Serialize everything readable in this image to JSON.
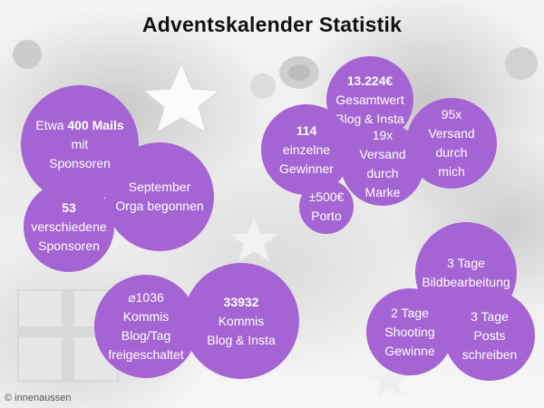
{
  "title": "Adventskalender Statistik",
  "copyright": "© innenaussen",
  "colors": {
    "bubble": "#a564d3",
    "title": "#111111"
  },
  "bubbles": {
    "mails": {
      "l1_pre": "Etwa ",
      "l1_bold": "400 Mails",
      "l2": "mit",
      "l3": "Sponsoren"
    },
    "september": {
      "l1": "September",
      "l2": "Orga begonnen"
    },
    "sponsors": {
      "l1": "53",
      "l2": "verschiedene",
      "l3": "Sponsoren"
    },
    "gesamtwert": {
      "l1": "13.224€",
      "l2": "Gesamtwert",
      "l3": "Blog & Insta"
    },
    "gewinner": {
      "l1": "114",
      "l2": "einzelne",
      "l3": "Gewinner"
    },
    "marke": {
      "l1": "19x",
      "l2": "Versand",
      "l3": "durch",
      "l4": "Marke"
    },
    "porto": {
      "l1": "±500€",
      "l2": "Porto"
    },
    "versand": {
      "l1": "95x",
      "l2": "Versand durch",
      "l3": "mich"
    },
    "kommis_avg": {
      "l1": "⌀1036",
      "l2": "Kommis",
      "l3": "Blog/Tag",
      "l4": "freigeschaltet"
    },
    "kommis_total": {
      "l1": "33932",
      "l2": "Kommis",
      "l3": "Blog & Insta"
    },
    "bildbearbeitung": {
      "l1": "3 Tage",
      "l2": "Bildbearbeitung"
    },
    "shooting": {
      "l1": "2 Tage",
      "l2": "Shooting",
      "l3": "Gewinne"
    },
    "posts": {
      "l1": "3 Tage",
      "l2": "Posts",
      "l3": "schreiben"
    }
  }
}
